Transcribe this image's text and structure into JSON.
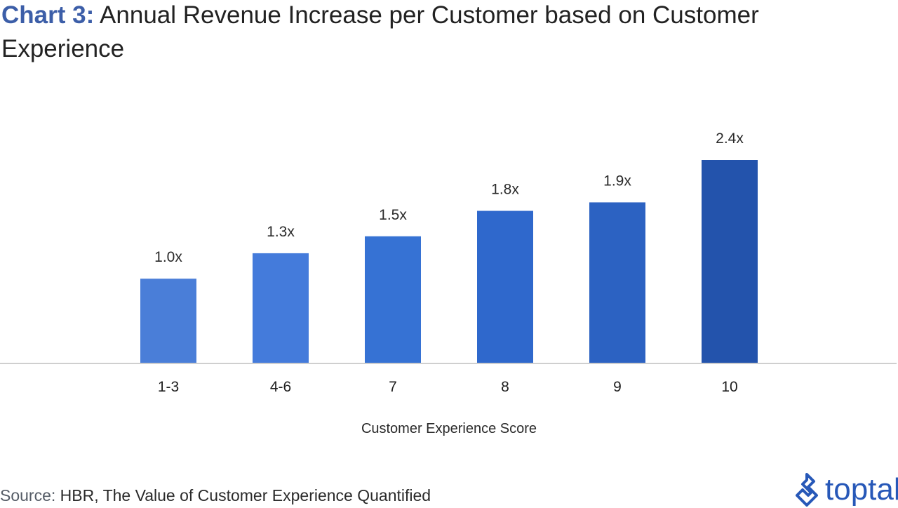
{
  "title": {
    "prefix": "Chart 3:",
    "text": "Annual Revenue Increase per Customer based on Customer Experience"
  },
  "chart_data": {
    "type": "bar",
    "categories": [
      "1-3",
      "4-6",
      "7",
      "8",
      "9",
      "10"
    ],
    "values": [
      1.0,
      1.3,
      1.5,
      1.8,
      1.9,
      2.4
    ],
    "value_labels": [
      "1.0x",
      "1.3x",
      "1.5x",
      "1.8x",
      "1.9x",
      "2.4x"
    ],
    "bar_colors": [
      "#4a7ed8",
      "#447bdb",
      "#3672d4",
      "#2f68cc",
      "#2c62c2",
      "#2353ac"
    ],
    "xlabel": "Customer Experience Score",
    "ylabel": "",
    "ylim": [
      0,
      2.6
    ],
    "grid": false,
    "legend": "none"
  },
  "source": {
    "label": "Source:",
    "text": "HBR, The Value of Customer Experience Quantified"
  },
  "brand": {
    "name": "toptal",
    "color": "#2758b8"
  }
}
